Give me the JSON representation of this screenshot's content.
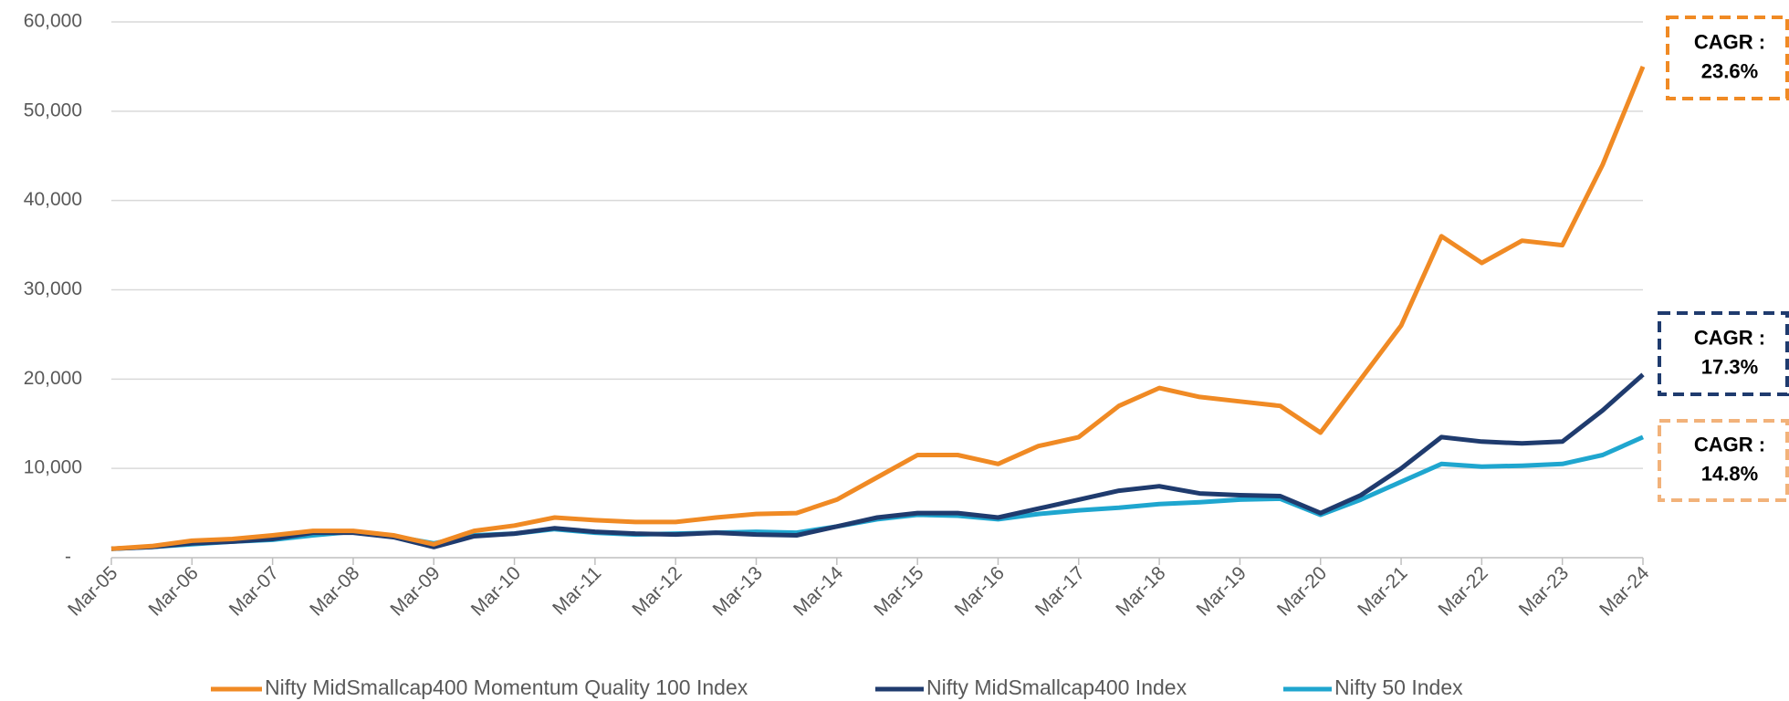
{
  "chart_data": {
    "type": "line",
    "x": [
      "Mar-05",
      "Sep-05",
      "Mar-06",
      "Sep-06",
      "Mar-07",
      "Sep-07",
      "Mar-08",
      "Sep-08",
      "Mar-09",
      "Sep-09",
      "Mar-10",
      "Sep-10",
      "Mar-11",
      "Sep-11",
      "Mar-12",
      "Sep-12",
      "Mar-13",
      "Sep-13",
      "Mar-14",
      "Sep-14",
      "Mar-15",
      "Sep-15",
      "Mar-16",
      "Sep-16",
      "Mar-17",
      "Sep-17",
      "Mar-18",
      "Sep-18",
      "Mar-19",
      "Sep-19",
      "Mar-20",
      "Sep-20",
      "Mar-21",
      "Sep-21",
      "Mar-22",
      "Sep-22",
      "Mar-23",
      "Sep-23",
      "Mar-24"
    ],
    "xticks": [
      "Mar-05",
      "Mar-06",
      "Mar-07",
      "Mar-08",
      "Mar-09",
      "Mar-10",
      "Mar-11",
      "Mar-12",
      "Mar-13",
      "Mar-14",
      "Mar-15",
      "Mar-16",
      "Mar-17",
      "Mar-18",
      "Mar-19",
      "Mar-20",
      "Mar-21",
      "Mar-22",
      "Mar-23",
      "Mar-24"
    ],
    "series": [
      {
        "name": "Nifty MidSmallcap400 Momentum Quality 100 Index",
        "color": "#f08a24",
        "values": [
          1000,
          1300,
          1900,
          2100,
          2500,
          3000,
          3000,
          2500,
          1500,
          3000,
          3600,
          4500,
          4200,
          4000,
          4000,
          4500,
          4900,
          5000,
          6500,
          9000,
          11500,
          11500,
          10500,
          12500,
          13500,
          17000,
          19000,
          18000,
          17500,
          17000,
          14000,
          20000,
          26000,
          36000,
          33000,
          35500,
          35000,
          44000,
          55000
        ]
      },
      {
        "name": "Nifty MidSmallcap400 Index",
        "color": "#1f3b6e",
        "values": [
          1000,
          1200,
          1600,
          1800,
          2100,
          2800,
          2800,
          2300,
          1200,
          2400,
          2700,
          3300,
          2900,
          2700,
          2600,
          2800,
          2600,
          2500,
          3500,
          4500,
          5000,
          5000,
          4500,
          5500,
          6500,
          7500,
          8000,
          7200,
          7000,
          6900,
          5000,
          7000,
          10000,
          13500,
          13000,
          12800,
          13000,
          16500,
          20500
        ]
      },
      {
        "name": "Nifty 50 Index",
        "color": "#1fa6cf",
        "values": [
          1000,
          1200,
          1500,
          1800,
          2000,
          2500,
          2900,
          2400,
          1600,
          2500,
          2700,
          3200,
          2800,
          2600,
          2700,
          2800,
          2900,
          2800,
          3500,
          4300,
          4800,
          4700,
          4300,
          4900,
          5300,
          5600,
          6000,
          6200,
          6500,
          6600,
          4800,
          6500,
          8500,
          10500,
          10200,
          10300,
          10500,
          11500,
          13500
        ]
      }
    ],
    "ylim": [
      0,
      60000
    ],
    "yticks": [
      {
        "value": 0,
        "label": "-"
      },
      {
        "value": 10000,
        "label": "10,000"
      },
      {
        "value": 20000,
        "label": "20,000"
      },
      {
        "value": 30000,
        "label": "30,000"
      },
      {
        "value": 40000,
        "label": "40,000"
      },
      {
        "value": 50000,
        "label": "50,000"
      },
      {
        "value": 60000,
        "label": "60,000"
      }
    ],
    "grid": true,
    "annotations": [
      {
        "lines": [
          "CAGR :",
          "23.6%"
        ],
        "color": "#f08a24"
      },
      {
        "lines": [
          "CAGR :",
          "17.3%"
        ],
        "color": "#1f3b6e"
      },
      {
        "lines": [
          "CAGR :",
          "14.8%"
        ],
        "color": "#f2b27a"
      }
    ]
  }
}
